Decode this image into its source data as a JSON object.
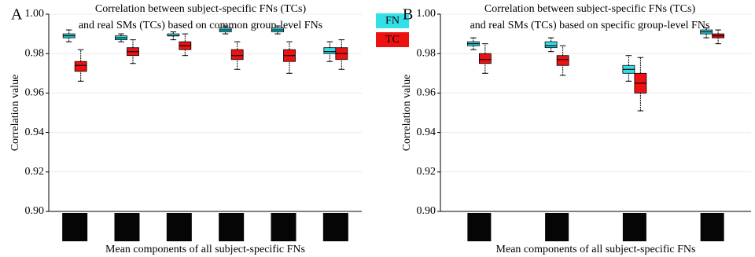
{
  "chart_data": [
    {
      "type": "box",
      "panel": "A",
      "title": [
        "Correlation between subject-specific FNs (TCs)",
        "and real SMs (TCs) based on common group-level FNs"
      ],
      "y_label": "Correlation value",
      "x_label": "Mean components of all subject-specific FNs",
      "categories": [
        null,
        null,
        null,
        null,
        null,
        null
      ],
      "ylim": [
        0.9,
        1.0
      ],
      "yticks": [
        {
          "value": 0.9,
          "label": "0.90"
        },
        {
          "value": 0.92,
          "label": "0.92"
        },
        {
          "value": 0.94,
          "label": "0.94"
        },
        {
          "value": 0.96,
          "label": "0.96"
        },
        {
          "value": 0.98,
          "label": "0.98"
        },
        {
          "value": 1.0,
          "label": "1.00"
        }
      ],
      "grid": true,
      "legend": "right",
      "series": [
        {
          "name": "FN",
          "color": "#33e0e8",
          "whislo": [
            0.986,
            0.986,
            0.987,
            0.99,
            0.99,
            0.976
          ],
          "q1": [
            0.988,
            0.987,
            0.989,
            0.991,
            0.991,
            0.98
          ],
          "median": [
            0.989,
            0.988,
            0.989,
            0.992,
            0.992,
            0.981
          ],
          "q3": [
            0.99,
            0.989,
            0.99,
            0.993,
            0.993,
            0.983
          ],
          "whishi": [
            0.992,
            0.99,
            0.991,
            0.994,
            0.994,
            0.986
          ]
        },
        {
          "name": "TC",
          "color": "#ee1111",
          "whislo": [
            0.966,
            0.975,
            0.979,
            0.972,
            0.97,
            0.972
          ],
          "q1": [
            0.971,
            0.979,
            0.982,
            0.977,
            0.976,
            0.977
          ],
          "median": [
            0.974,
            0.981,
            0.984,
            0.979,
            0.979,
            0.98
          ],
          "q3": [
            0.976,
            0.983,
            0.986,
            0.982,
            0.982,
            0.983
          ],
          "whishi": [
            0.982,
            0.987,
            0.99,
            0.986,
            0.986,
            0.987
          ]
        }
      ]
    },
    {
      "type": "box",
      "panel": "B",
      "title": [
        "Correlation between subject-specific FNs (TCs)",
        "and real SMs (TCs) based on specific group-level FNs"
      ],
      "y_label": "Correlation value",
      "x_label": "Mean components of all subject-specific FNs",
      "categories": [
        null,
        null,
        null,
        null
      ],
      "ylim": [
        0.9,
        1.0
      ],
      "yticks": [
        {
          "value": 0.9,
          "label": "0.90"
        },
        {
          "value": 0.92,
          "label": "0.92"
        },
        {
          "value": 0.94,
          "label": "0.94"
        },
        {
          "value": 0.96,
          "label": "0.96"
        },
        {
          "value": 0.98,
          "label": "0.98"
        },
        {
          "value": 1.0,
          "label": "1.00"
        }
      ],
      "grid": true,
      "series": [
        {
          "name": "FN",
          "color": "#33e0e8",
          "whislo": [
            0.982,
            0.981,
            0.966,
            0.988
          ],
          "q1": [
            0.984,
            0.983,
            0.97,
            0.99
          ],
          "median": [
            0.985,
            0.984,
            0.972,
            0.991
          ],
          "q3": [
            0.986,
            0.986,
            0.974,
            0.992
          ],
          "whishi": [
            0.988,
            0.988,
            0.979,
            0.993
          ]
        },
        {
          "name": "TC",
          "color": "#ee1111",
          "whislo": [
            0.97,
            0.969,
            0.951,
            0.985
          ],
          "q1": [
            0.975,
            0.974,
            0.96,
            0.988
          ],
          "median": [
            0.977,
            0.977,
            0.965,
            0.989
          ],
          "q3": [
            0.98,
            0.979,
            0.97,
            0.99
          ],
          "whishi": [
            0.985,
            0.984,
            0.978,
            0.992
          ]
        }
      ]
    }
  ]
}
